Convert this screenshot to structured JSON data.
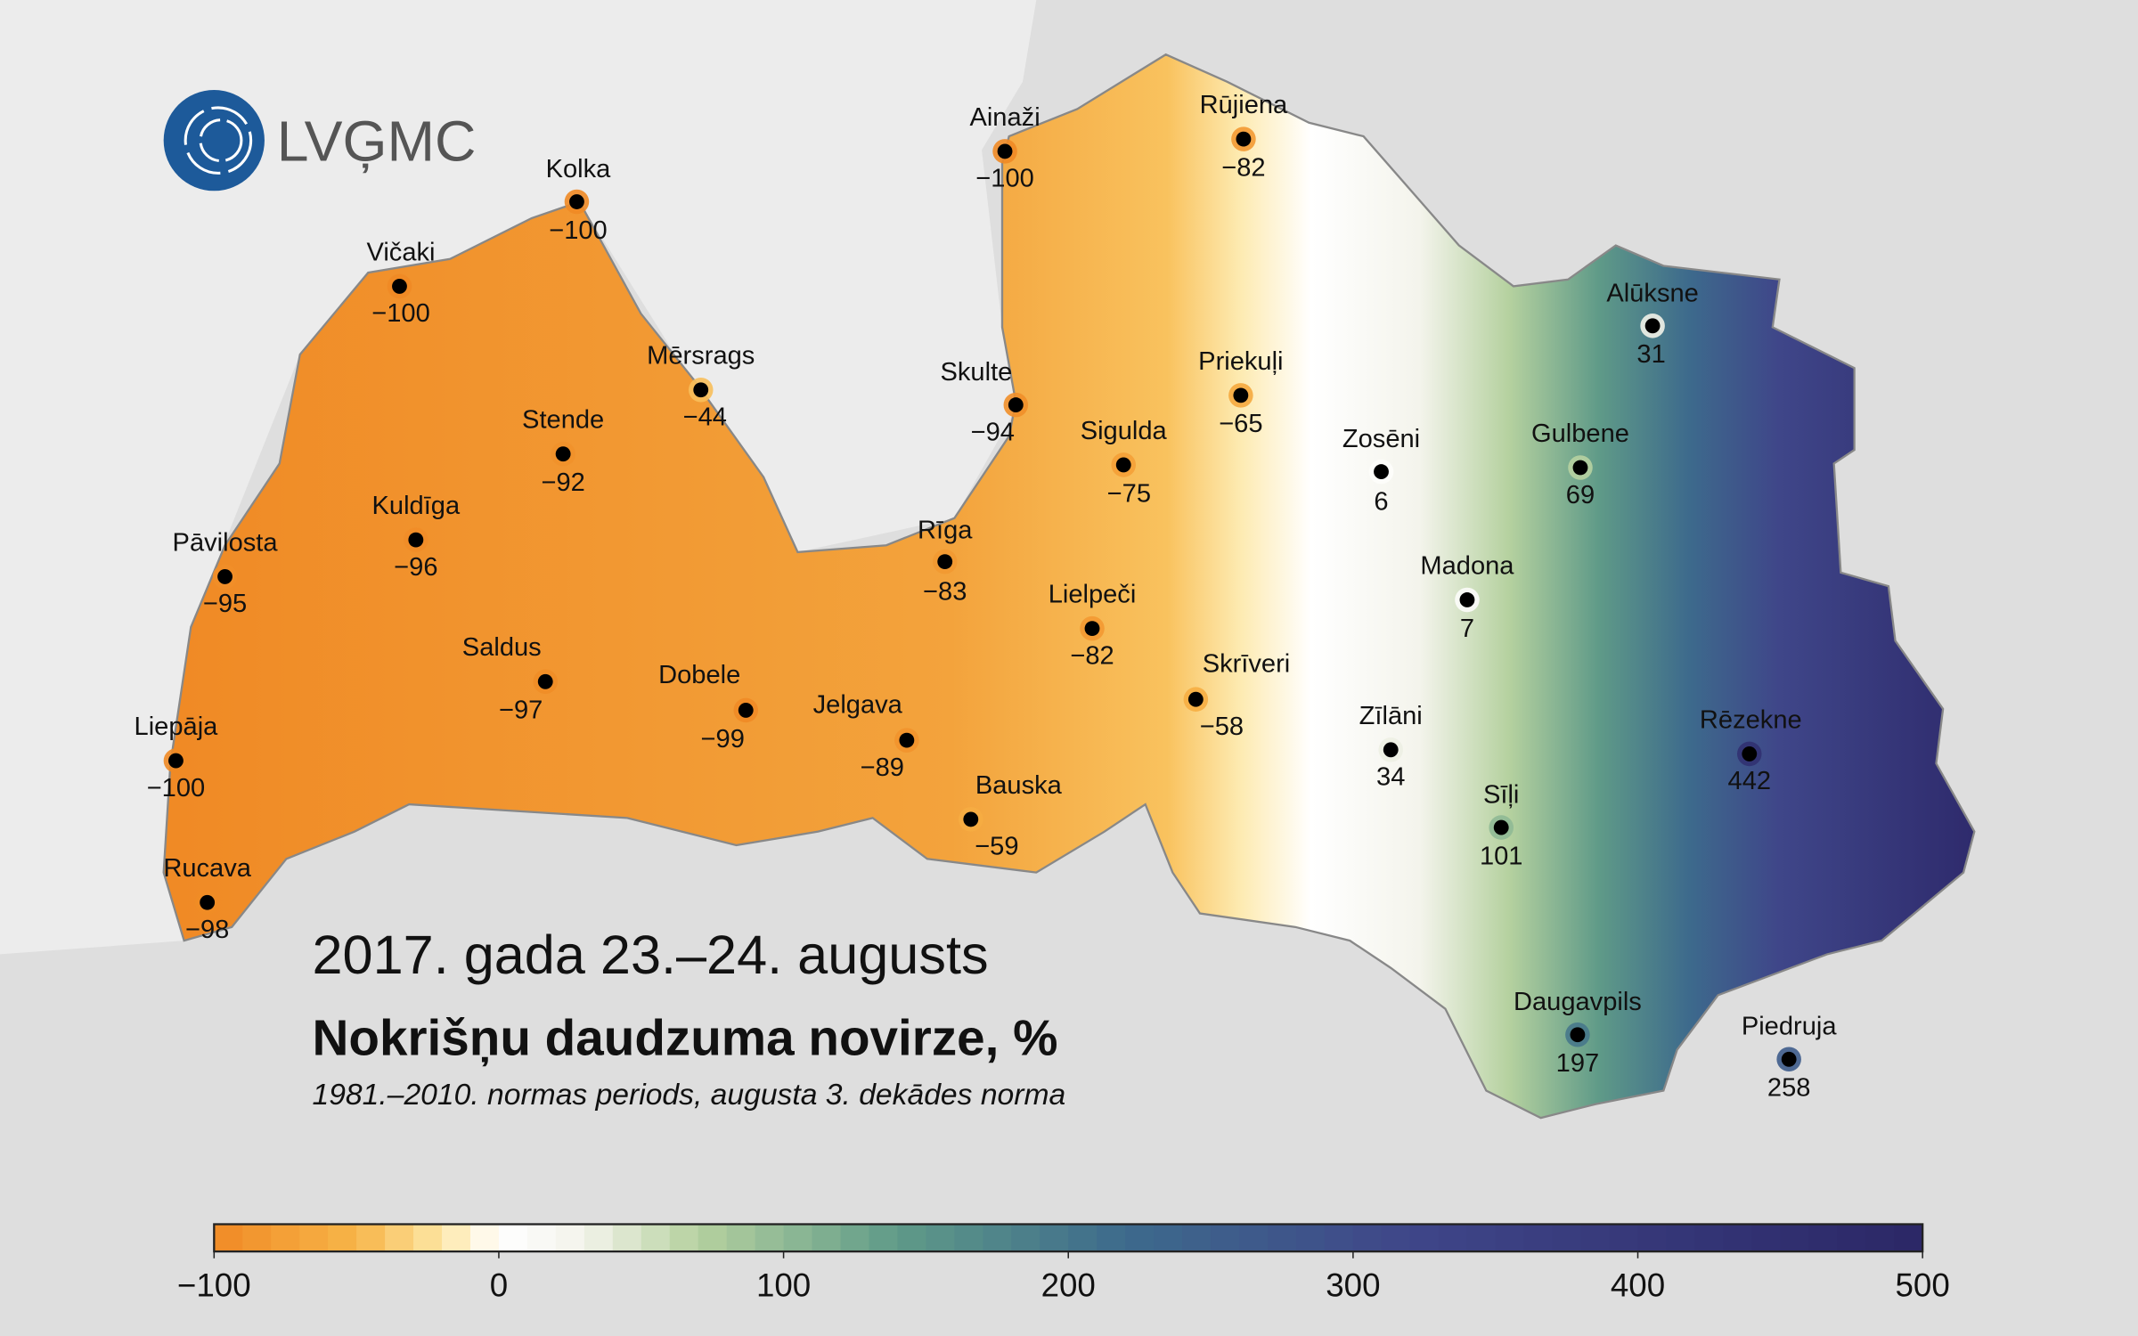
{
  "logo": "LVĢMC",
  "date": "2017. gada 23.–24. augusts",
  "title": "Nokrišņu daudzuma novirze, %",
  "subtitle": "1981.–2010. normas periods,  augusta 3. dekādes norma",
  "stations": [
    {
      "name": "Kolka",
      "value": -100,
      "label": "−100"
    },
    {
      "name": "Ainaži",
      "value": -100,
      "label": "−100"
    },
    {
      "name": "Rūjiena",
      "value": -82,
      "label": "−82"
    },
    {
      "name": "Vičaki",
      "value": -100,
      "label": "−100"
    },
    {
      "name": "Mērsrags",
      "value": -44,
      "label": "−44"
    },
    {
      "name": "Skulte",
      "value": -94,
      "label": "−94"
    },
    {
      "name": "Priekuļi",
      "value": -65,
      "label": "−65"
    },
    {
      "name": "Alūksne",
      "value": 31
    },
    {
      "name": "Stende",
      "value": -92,
      "label": "−92"
    },
    {
      "name": "Sigulda",
      "value": -75,
      "label": "−75"
    },
    {
      "name": "Zosēni",
      "value": 6
    },
    {
      "name": "Gulbene",
      "value": 69
    },
    {
      "name": "Kuldīga",
      "value": -96,
      "label": "−96"
    },
    {
      "name": "Pāvilosta",
      "value": -95,
      "label": "−95"
    },
    {
      "name": "Rīga",
      "value": -83,
      "label": "−83"
    },
    {
      "name": "Madona",
      "value": 7
    },
    {
      "name": "Lielpeči",
      "value": -82,
      "label": "−82"
    },
    {
      "name": "Saldus",
      "value": -97,
      "label": "−97"
    },
    {
      "name": "Skrīveri",
      "value": -58,
      "label": "−58"
    },
    {
      "name": "Dobele",
      "value": -99,
      "label": "−99"
    },
    {
      "name": "Jelgava",
      "value": -89,
      "label": "−89"
    },
    {
      "name": "Zīlāni",
      "value": 34
    },
    {
      "name": "Rēzekne",
      "value": 442
    },
    {
      "name": "Liepāja",
      "value": -100,
      "label": "−100"
    },
    {
      "name": "Bauska",
      "value": -59,
      "label": "−59"
    },
    {
      "name": "Sīļi",
      "value": 101
    },
    {
      "name": "Rucava",
      "value": -98,
      "label": "−98"
    },
    {
      "name": "Daugavpils",
      "value": 197
    },
    {
      "name": "Piedruja",
      "value": 258
    }
  ],
  "colorbar": {
    "range": [
      -100,
      500
    ],
    "ticks": [
      {
        "value": -100,
        "label": "−100"
      },
      0,
      100,
      200,
      300,
      400,
      500
    ],
    "colorscale": [
      [
        -100,
        "#f08a25"
      ],
      [
        -50,
        "#f7b548"
      ],
      [
        -20,
        "#fde7a6"
      ],
      [
        0,
        "#ffffff"
      ],
      [
        30,
        "#f3f3ea"
      ],
      [
        70,
        "#b5d19f"
      ],
      [
        140,
        "#5f9a88"
      ],
      [
        220,
        "#3d6a8c"
      ],
      [
        320,
        "#3f4689"
      ],
      [
        500,
        "#2b2766"
      ]
    ]
  }
}
